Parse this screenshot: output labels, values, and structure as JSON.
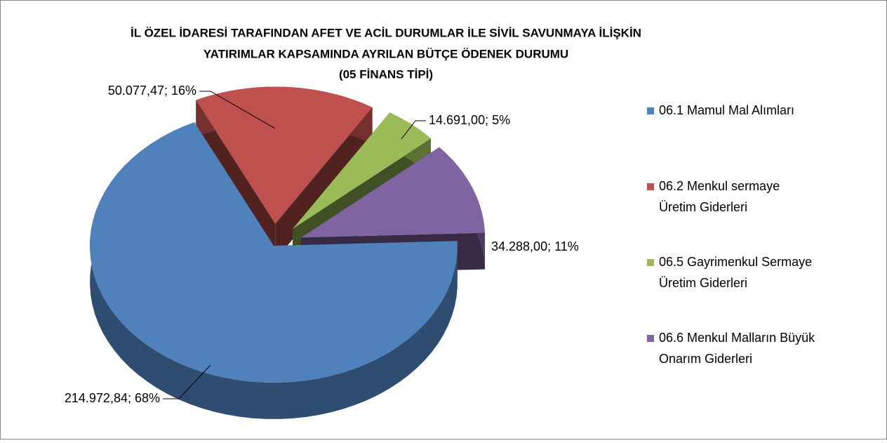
{
  "chart_data": {
    "type": "pie",
    "title": [
      "İL ÖZEL İDARESİ TARAFINDAN AFET VE ACİL DURUMLAR İLE SİVİL SAVUNMAYA İLİŞKİN",
      "YATIRIMLAR KAPSAMINDA AYRILAN BÜTÇE ÖDENEK DURUMU",
      "(05 FİNANS TİPİ)"
    ],
    "series": [
      {
        "name": "06.1 Mamul Mal Alımları",
        "color": "#4f81bd"
      },
      {
        "name": "06.2 Menkul sermaye Üretim Giderleri",
        "color": "#c0504d"
      },
      {
        "name": "06.5 Gayrimenkul Sermaye Üretim Giderleri",
        "color": "#9bbb59"
      },
      {
        "name": "06.6 Menkul Malların Büyük Onarım Giderleri",
        "color": "#8064a2"
      }
    ],
    "values": [
      214972.84,
      50077.47,
      14691.0,
      34288.0
    ],
    "value_labels": [
      "214.972,84; 68%",
      "50.077,47; 16%",
      "14.691,00; 5%",
      "34.288,00; 11%"
    ],
    "legend": "right"
  }
}
